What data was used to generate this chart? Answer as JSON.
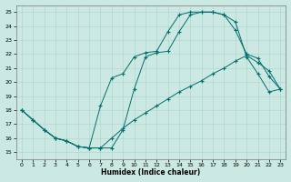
{
  "xlabel": "Humidex (Indice chaleur)",
  "bg_color": "#cce8e2",
  "grid_color": "#aad4cc",
  "line_color": "#007070",
  "xlim": [
    -0.5,
    23.5
  ],
  "ylim": [
    14.5,
    25.5
  ],
  "xticks": [
    0,
    1,
    2,
    3,
    4,
    5,
    6,
    7,
    8,
    9,
    10,
    11,
    12,
    13,
    14,
    15,
    16,
    17,
    18,
    19,
    20,
    21,
    22,
    23
  ],
  "yticks": [
    15,
    16,
    17,
    18,
    19,
    20,
    21,
    22,
    23,
    24,
    25
  ],
  "line1_x": [
    0,
    1,
    2,
    3,
    4,
    5,
    6,
    7,
    8,
    9,
    10,
    11,
    12,
    13,
    14,
    15,
    16,
    17,
    18,
    19,
    20,
    21,
    22,
    23
  ],
  "line1_y": [
    18.0,
    17.3,
    16.6,
    16.0,
    15.8,
    15.4,
    15.3,
    15.3,
    16.0,
    16.7,
    17.3,
    17.8,
    18.3,
    18.8,
    19.3,
    19.7,
    20.1,
    20.6,
    21.0,
    21.5,
    21.9,
    21.4,
    20.8,
    19.5
  ],
  "line2_x": [
    0,
    1,
    2,
    3,
    4,
    5,
    6,
    7,
    8,
    9,
    10,
    11,
    12,
    13,
    14,
    15,
    16,
    17,
    18,
    19,
    20,
    21,
    22,
    23
  ],
  "line2_y": [
    18.0,
    17.3,
    16.6,
    16.0,
    15.8,
    15.4,
    15.3,
    18.3,
    20.3,
    20.6,
    21.8,
    22.1,
    22.2,
    23.6,
    24.8,
    25.0,
    25.0,
    25.0,
    24.8,
    24.3,
    21.8,
    20.6,
    19.3,
    19.5
  ],
  "line3_x": [
    0,
    1,
    2,
    3,
    4,
    5,
    6,
    7,
    8,
    9,
    10,
    11,
    12,
    13,
    14,
    15,
    16,
    17,
    18,
    19,
    20,
    21,
    22,
    23
  ],
  "line3_y": [
    18.0,
    17.3,
    16.6,
    16.0,
    15.8,
    15.4,
    15.3,
    15.3,
    15.3,
    16.6,
    19.5,
    21.8,
    22.1,
    22.2,
    23.6,
    24.8,
    25.0,
    25.0,
    24.8,
    23.7,
    22.0,
    21.7,
    20.4,
    19.5
  ]
}
